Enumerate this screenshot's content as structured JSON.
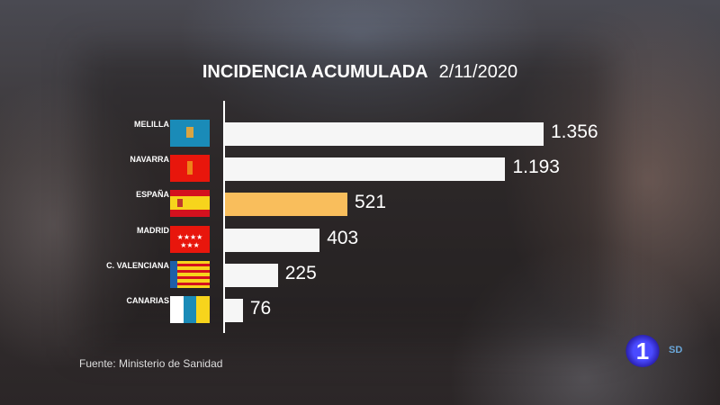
{
  "chart_data": {
    "type": "bar",
    "orientation": "horizontal",
    "title": "INCIDENCIA ACUMULADA",
    "subtitle": "2/11/2020",
    "categories": [
      "MELILLA",
      "NAVARRA",
      "ESPAÑA",
      "MADRID",
      "C. VALENCIANA",
      "CANARIAS"
    ],
    "values": [
      1356,
      1193,
      521,
      403,
      225,
      76
    ],
    "value_labels": [
      "1.356",
      "1.193",
      "521",
      "403",
      "225",
      "76"
    ],
    "highlight": "ESPAÑA",
    "colors": {
      "bar": "#f6f6f6",
      "highlight": "#f9be5c"
    },
    "grid": false
  },
  "source": "Fuente: Ministerio de Sanidad",
  "logo": {
    "channel": "1",
    "quality": "SD"
  }
}
